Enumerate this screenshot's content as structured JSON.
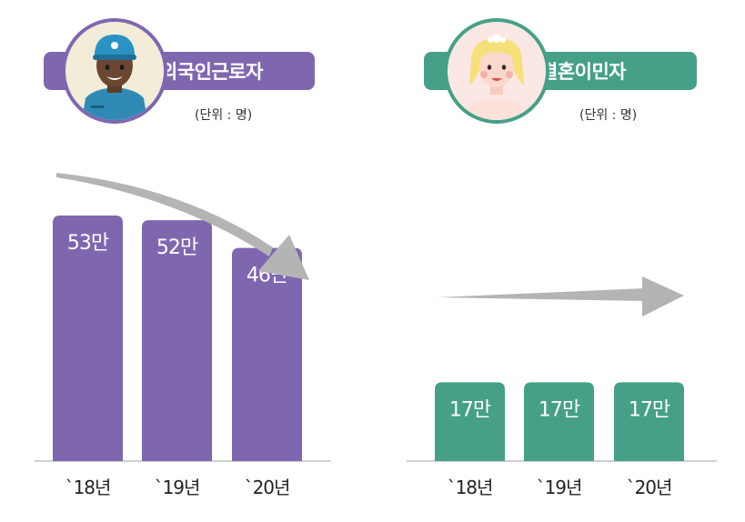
{
  "colors": {
    "purple": "#7f67b0",
    "green": "#46a088",
    "arrow": "#b4b4b4",
    "axis": "#bfbfbf"
  },
  "left": {
    "title": "외국인근로자",
    "unit": "(단위 : 명)",
    "avatar_icon": "male-worker-avatar"
  },
  "right": {
    "title": "결혼이민자",
    "unit": "(단위 : 명)",
    "avatar_icon": "bride-avatar"
  },
  "chart_data": [
    {
      "type": "bar",
      "title": "외국인근로자",
      "categories": [
        "`18년",
        "`19년",
        "`20년"
      ],
      "values": [
        53,
        52,
        46
      ],
      "value_labels": [
        "53만",
        "52만",
        "46만"
      ],
      "trend": "down",
      "ylim": [
        0,
        60
      ],
      "grid": false
    },
    {
      "type": "bar",
      "title": "결혼이민자",
      "categories": [
        "`18년",
        "`19년",
        "`20년"
      ],
      "values": [
        17,
        17,
        17
      ],
      "value_labels": [
        "17만",
        "17만",
        "17만"
      ],
      "trend": "flat",
      "ylim": [
        0,
        60
      ],
      "grid": false
    }
  ]
}
